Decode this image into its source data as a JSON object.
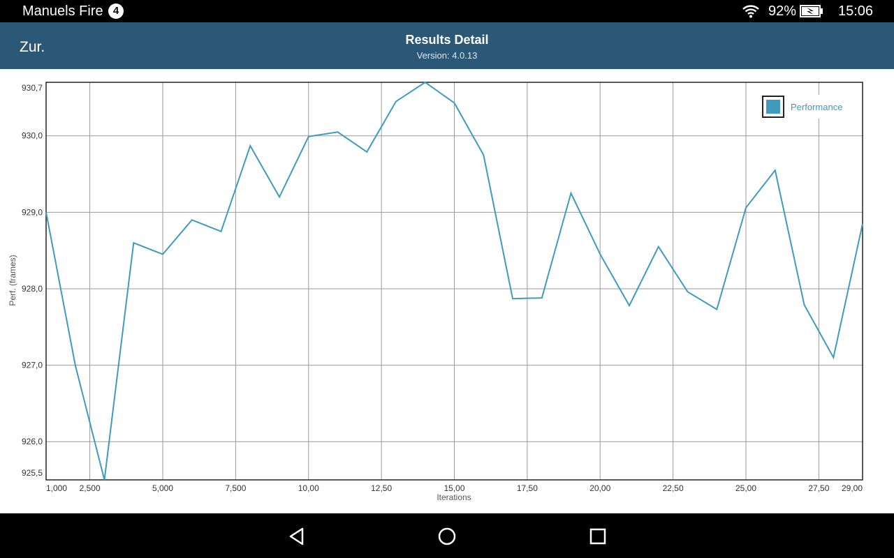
{
  "status_bar": {
    "device_name": "Manuels Fire",
    "notification_count": "4",
    "battery_percent": "92%",
    "time": "15:06",
    "icons": [
      "wifi-icon",
      "battery-charging-icon"
    ]
  },
  "app_bar": {
    "back_label": "Zur.",
    "title": "Results Detail",
    "version": "Version: 4.0.13"
  },
  "nav_bar": {
    "icons": [
      "back-triangle-icon",
      "home-circle-icon",
      "recents-square-icon"
    ]
  },
  "colors": {
    "app_bar": "#2b5876",
    "series": "#3e9bbf"
  },
  "chart_data": {
    "type": "line",
    "xlabel": "Iterations",
    "ylabel": "Perf. (frames)",
    "xlim": [
      0,
      28
    ],
    "ylim": [
      925.5,
      930.7
    ],
    "x_ticks": [
      {
        "value": 0,
        "label": "1,000"
      },
      {
        "value": 1.5,
        "label": "2,500"
      },
      {
        "value": 4,
        "label": "5,000"
      },
      {
        "value": 6.5,
        "label": "7,500"
      },
      {
        "value": 9,
        "label": "10,00"
      },
      {
        "value": 11.5,
        "label": "12,50"
      },
      {
        "value": 14,
        "label": "15,00"
      },
      {
        "value": 16.5,
        "label": "17,50"
      },
      {
        "value": 19,
        "label": "20,00"
      },
      {
        "value": 21.5,
        "label": "22,50"
      },
      {
        "value": 24,
        "label": "25,00"
      },
      {
        "value": 26.5,
        "label": "27,50"
      },
      {
        "value": 28,
        "label": "29,00"
      }
    ],
    "y_ticks": [
      {
        "value": 930.7,
        "label": "930,7"
      },
      {
        "value": 930,
        "label": "930,0"
      },
      {
        "value": 929,
        "label": "929,0"
      },
      {
        "value": 928,
        "label": "928,0"
      },
      {
        "value": 927,
        "label": "927,0"
      },
      {
        "value": 926,
        "label": "926,0"
      },
      {
        "value": 925.5,
        "label": "925,5"
      }
    ],
    "grid": true,
    "legend_position": "top-right",
    "series": [
      {
        "name": "Performance",
        "color": "#3e9bbf",
        "x": [
          0,
          1,
          2,
          3,
          4,
          5,
          6,
          7,
          8,
          9,
          10,
          11,
          12,
          13,
          14,
          15,
          16,
          17,
          18,
          19,
          20,
          21,
          22,
          23,
          24,
          25,
          26,
          27,
          28
        ],
        "values": [
          929.0,
          927.0,
          925.5,
          928.6,
          928.45,
          928.9,
          928.75,
          929.87,
          929.2,
          929.99,
          930.05,
          929.79,
          930.45,
          930.7,
          930.43,
          929.75,
          927.87,
          927.88,
          929.25,
          928.45,
          927.78,
          928.55,
          927.96,
          927.73,
          929.06,
          929.55,
          927.79,
          927.1,
          928.85
        ]
      }
    ]
  }
}
